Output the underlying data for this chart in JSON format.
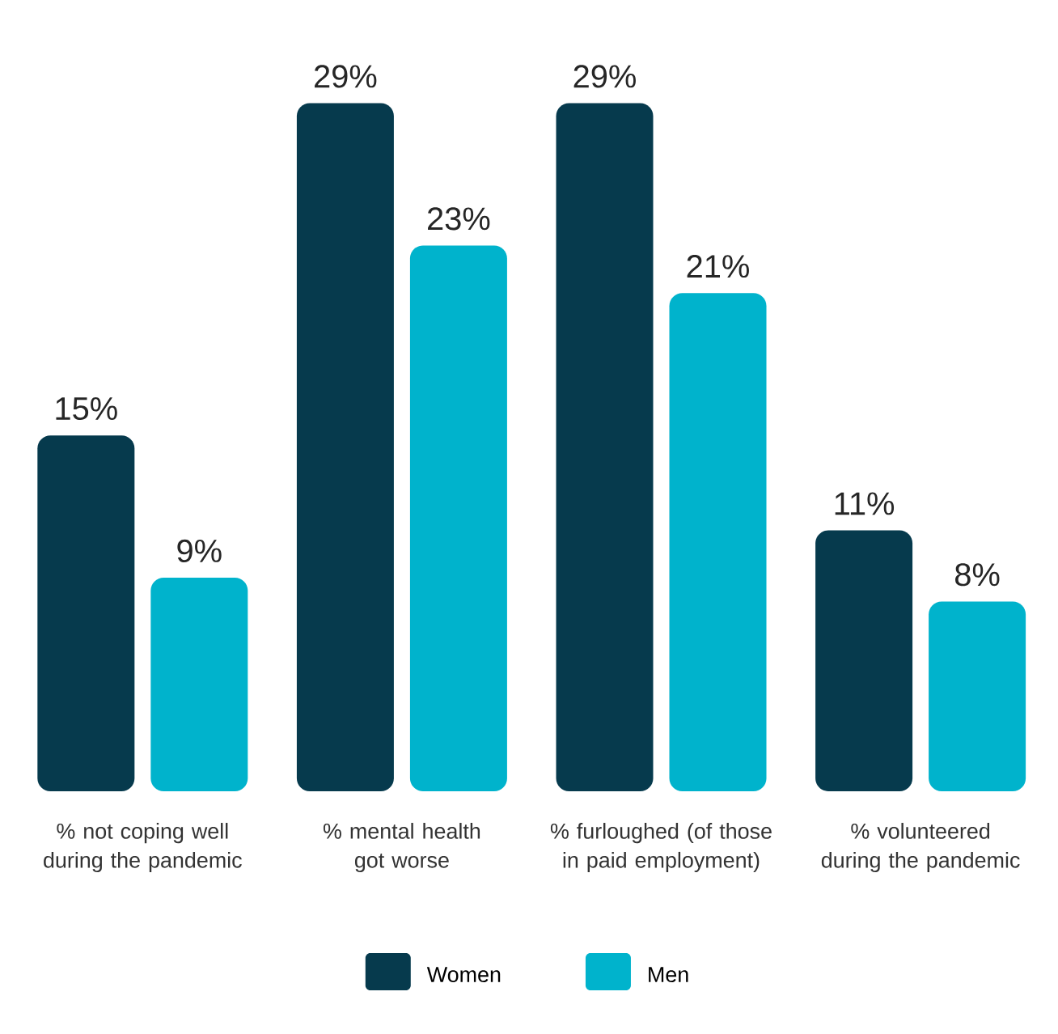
{
  "chart_data": {
    "type": "bar",
    "categories": [
      "% not coping well during the pandemic",
      "% mental health got worse",
      "% furloughed (of those in paid employment)",
      "% volunteered during the pandemic"
    ],
    "series": [
      {
        "name": "Women",
        "color": "#063a4d",
        "values": [
          15,
          29,
          29,
          11
        ],
        "value_labels": [
          "15%",
          "29%",
          "29%",
          "11%"
        ]
      },
      {
        "name": "Men",
        "color": "#00b3cc",
        "values": [
          9,
          23,
          21,
          8
        ],
        "value_labels": [
          "9%",
          "23%",
          "21%",
          "8%"
        ]
      }
    ],
    "legend": "bottom"
  }
}
